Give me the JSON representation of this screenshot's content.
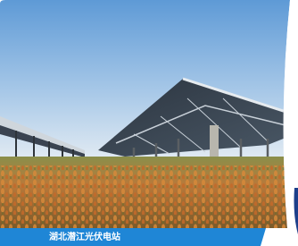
{
  "caption": "湖北潜江光伏电站"
}
